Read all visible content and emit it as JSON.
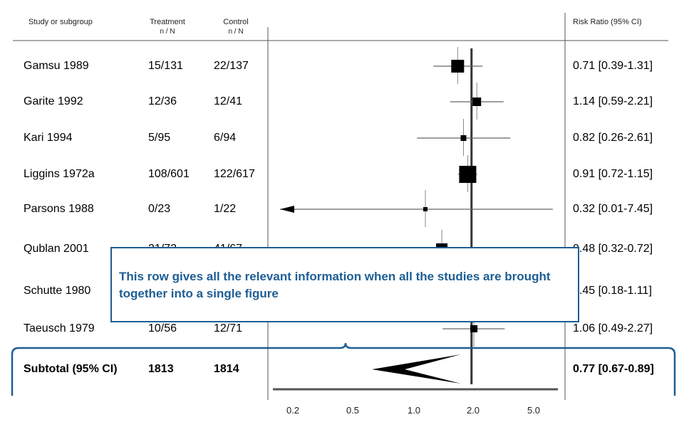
{
  "columns": {
    "study": "Study or subgroup",
    "treatment": "Treatment",
    "treatment_sub": "n / N",
    "control": "Control",
    "control_sub": "n / N",
    "risk_ratio": "Risk Ratio (95% CI)"
  },
  "callout": {
    "text": "This row gives all the relevant information when all the studies are brought together into a single figure"
  },
  "chart_data": {
    "type": "forest",
    "scale": "log",
    "xlim": [
      0.01,
      8
    ],
    "reference_line": 1.0,
    "x_ticks": [
      "0.2",
      "0.5",
      "1.0",
      "2.0",
      "5.0"
    ],
    "x_tick_values": [
      0.2,
      0.5,
      1.0,
      2.0,
      5.0
    ],
    "studies": [
      {
        "name": "Gamsu 1989",
        "treatment": "15/131",
        "control": "22/137",
        "rr": 0.71,
        "lo": 0.39,
        "hi": 1.31,
        "ci_text": "0.71 [0.39-1.31]",
        "weight": 8
      },
      {
        "name": "Garite 1992",
        "treatment": "12/36",
        "control": "12/41",
        "rr": 1.14,
        "lo": 0.59,
        "hi": 2.21,
        "ci_text": "1.14 [0.59-2.21]",
        "weight": 5
      },
      {
        "name": "Kari 1994",
        "treatment": "5/95",
        "control": "6/94",
        "rr": 0.82,
        "lo": 0.26,
        "hi": 2.61,
        "ci_text": "0.82 [0.26-2.61]",
        "weight": 3
      },
      {
        "name": "Liggins 1972a",
        "treatment": "108/601",
        "control": "122/617",
        "rr": 0.91,
        "lo": 0.72,
        "hi": 1.15,
        "ci_text": "0.91 [0.72-1.15]",
        "weight": 11
      },
      {
        "name": "Parsons 1988",
        "treatment": "0/23",
        "control": "1/22",
        "rr": 0.32,
        "lo": 0.01,
        "hi": 7.45,
        "ci_text": "0.32 [0.01-7.45]",
        "weight": 2
      },
      {
        "name": "Qublan 2001",
        "treatment": "21/72",
        "control": "41/67",
        "rr": 0.48,
        "lo": 0.32,
        "hi": 0.72,
        "ci_text": "0.48 [0.32-0.72]",
        "weight": 7
      },
      {
        "name": "Schutte 1980",
        "treatment": "",
        "control": "",
        "rr": 0.45,
        "lo": 0.18,
        "hi": 1.11,
        "ci_text": "0.45 [0.18-1.11]",
        "weight": 5
      },
      {
        "name": "Taeusch 1979",
        "treatment": "10/56",
        "control": "12/71",
        "rr": 1.06,
        "lo": 0.49,
        "hi": 2.27,
        "ci_text": "1.06 [0.49-2.27]",
        "weight": 4
      }
    ],
    "subtotal": {
      "name": "Subtotal (95% CI)",
      "treatment": "1813",
      "control": "1814",
      "rr": 0.77,
      "lo": 0.67,
      "hi": 0.89,
      "ci_text": "0.77 [0.67-0.89]"
    }
  }
}
